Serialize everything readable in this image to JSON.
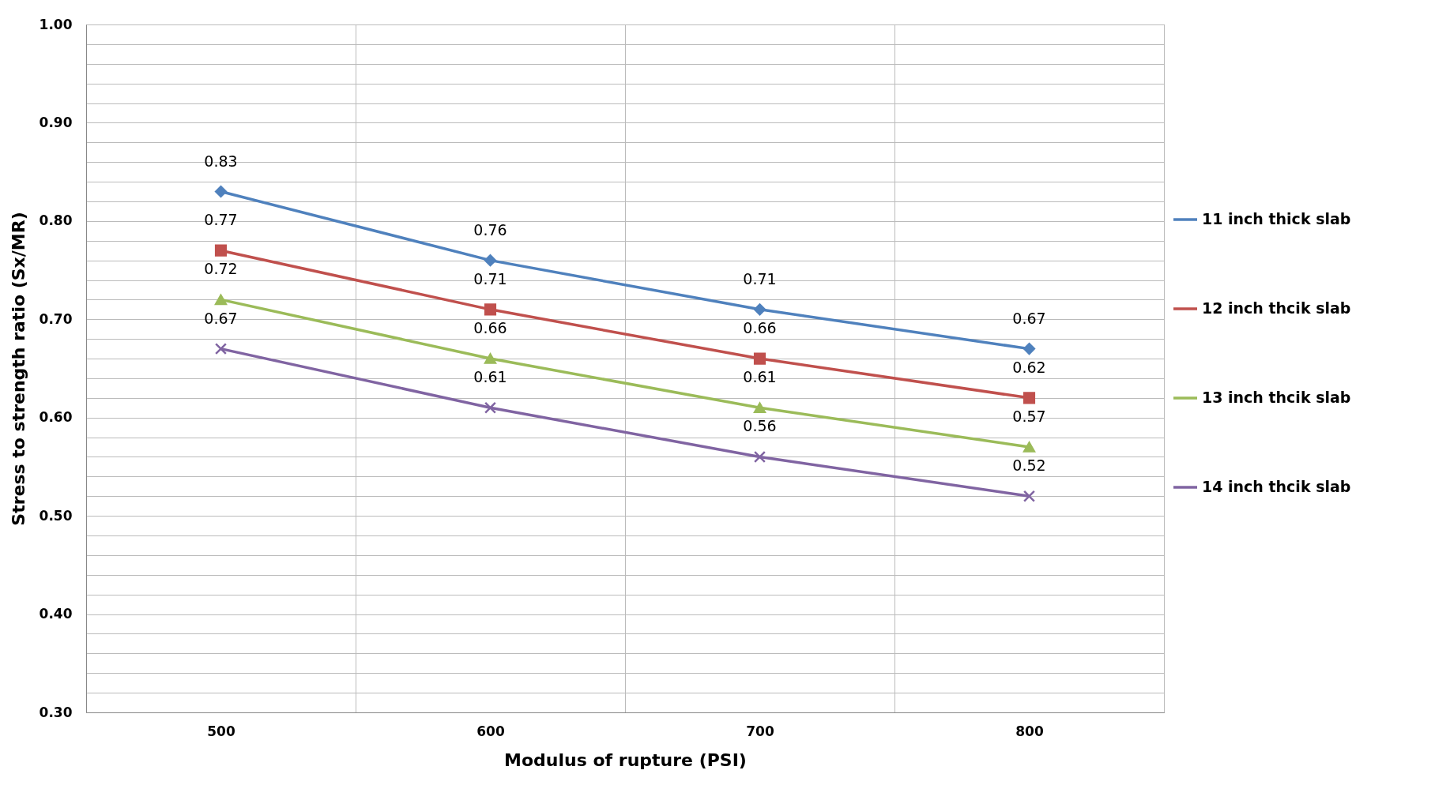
{
  "chart_data": {
    "type": "line",
    "xlabel": "Modulus of rupture (PSI)",
    "ylabel": "Stress to strength ratio (Sx/MR)",
    "categories": [
      "500",
      "600",
      "700",
      "800"
    ],
    "series": [
      {
        "name": "11 inch thick slab",
        "color": "#4f81bd",
        "marker": "diamond",
        "values": [
          0.83,
          0.76,
          0.71,
          0.67
        ]
      },
      {
        "name": "12 inch thcik slab",
        "color": "#c0504d",
        "marker": "square",
        "values": [
          0.77,
          0.71,
          0.66,
          0.62
        ]
      },
      {
        "name": "13 inch thcik slab",
        "color": "#9bbb59",
        "marker": "triangle",
        "values": [
          0.72,
          0.66,
          0.61,
          0.57
        ]
      },
      {
        "name": "14 inch thcik slab",
        "color": "#8064a2",
        "marker": "cross",
        "values": [
          0.67,
          0.61,
          0.56,
          0.52
        ]
      }
    ],
    "ylim": [
      0.3,
      1.0
    ],
    "yticks": [
      {
        "value": 0.3,
        "label": "0.30"
      },
      {
        "value": 0.32,
        "label": null
      },
      {
        "value": 0.34,
        "label": null
      },
      {
        "value": 0.36,
        "label": null
      },
      {
        "value": 0.38,
        "label": null
      },
      {
        "value": 0.4,
        "label": "0.40"
      },
      {
        "value": 0.42,
        "label": null
      },
      {
        "value": 0.44,
        "label": null
      },
      {
        "value": 0.46,
        "label": null
      },
      {
        "value": 0.48,
        "label": null
      },
      {
        "value": 0.5,
        "label": "0.50"
      },
      {
        "value": 0.52,
        "label": null
      },
      {
        "value": 0.54,
        "label": null
      },
      {
        "value": 0.56,
        "label": null
      },
      {
        "value": 0.58,
        "label": null
      },
      {
        "value": 0.6,
        "label": "0.60"
      },
      {
        "value": 0.62,
        "label": null
      },
      {
        "value": 0.64,
        "label": null
      },
      {
        "value": 0.66,
        "label": null
      },
      {
        "value": 0.68,
        "label": null
      },
      {
        "value": 0.7,
        "label": "0.70"
      },
      {
        "value": 0.72,
        "label": null
      },
      {
        "value": 0.74,
        "label": null
      },
      {
        "value": 0.76,
        "label": null
      },
      {
        "value": 0.78,
        "label": null
      },
      {
        "value": 0.8,
        "label": "0.80"
      },
      {
        "value": 0.82,
        "label": null
      },
      {
        "value": 0.84,
        "label": null
      },
      {
        "value": 0.86,
        "label": null
      },
      {
        "value": 0.88,
        "label": null
      },
      {
        "value": 0.9,
        "label": "0.90"
      },
      {
        "value": 0.92,
        "label": null
      },
      {
        "value": 0.94,
        "label": null
      },
      {
        "value": 0.96,
        "label": null
      },
      {
        "value": 0.98,
        "label": null
      },
      {
        "value": 1.0,
        "label": "1.00"
      }
    ],
    "grid": true,
    "legend": "right",
    "data_labels": true
  }
}
